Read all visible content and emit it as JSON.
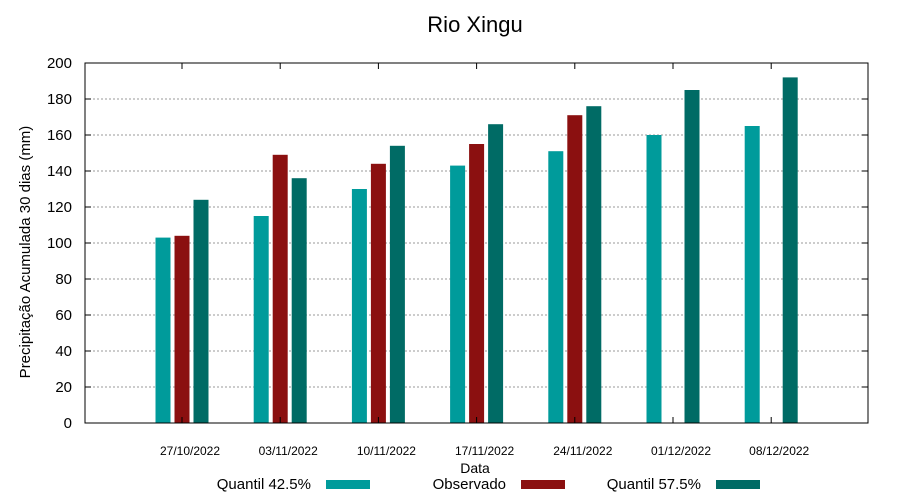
{
  "chart_data": {
    "type": "bar",
    "title": "Rio Xingu",
    "xlabel": "Data",
    "ylabel": "Precipitação Acumulada 30 dias (mm)",
    "ylim": [
      0,
      200
    ],
    "yticks": [
      0,
      20,
      40,
      60,
      80,
      100,
      120,
      140,
      160,
      180,
      200
    ],
    "grid": true,
    "legend_position": "bottom",
    "categories": [
      "27/10/2022",
      "03/11/2022",
      "10/11/2022",
      "17/11/2022",
      "24/11/2022",
      "01/12/2022",
      "08/12/2022"
    ],
    "series": [
      {
        "name": "Quantil 42.5%",
        "color": "#009b9b",
        "values": [
          103,
          115,
          130,
          143,
          151,
          160,
          165
        ]
      },
      {
        "name": "Observado",
        "color": "#8b1010",
        "values": [
          104,
          149,
          144,
          155,
          171,
          null,
          null
        ]
      },
      {
        "name": "Quantil 57.5%",
        "color": "#006b65",
        "values": [
          124,
          136,
          154,
          166,
          176,
          185,
          192
        ]
      }
    ]
  }
}
